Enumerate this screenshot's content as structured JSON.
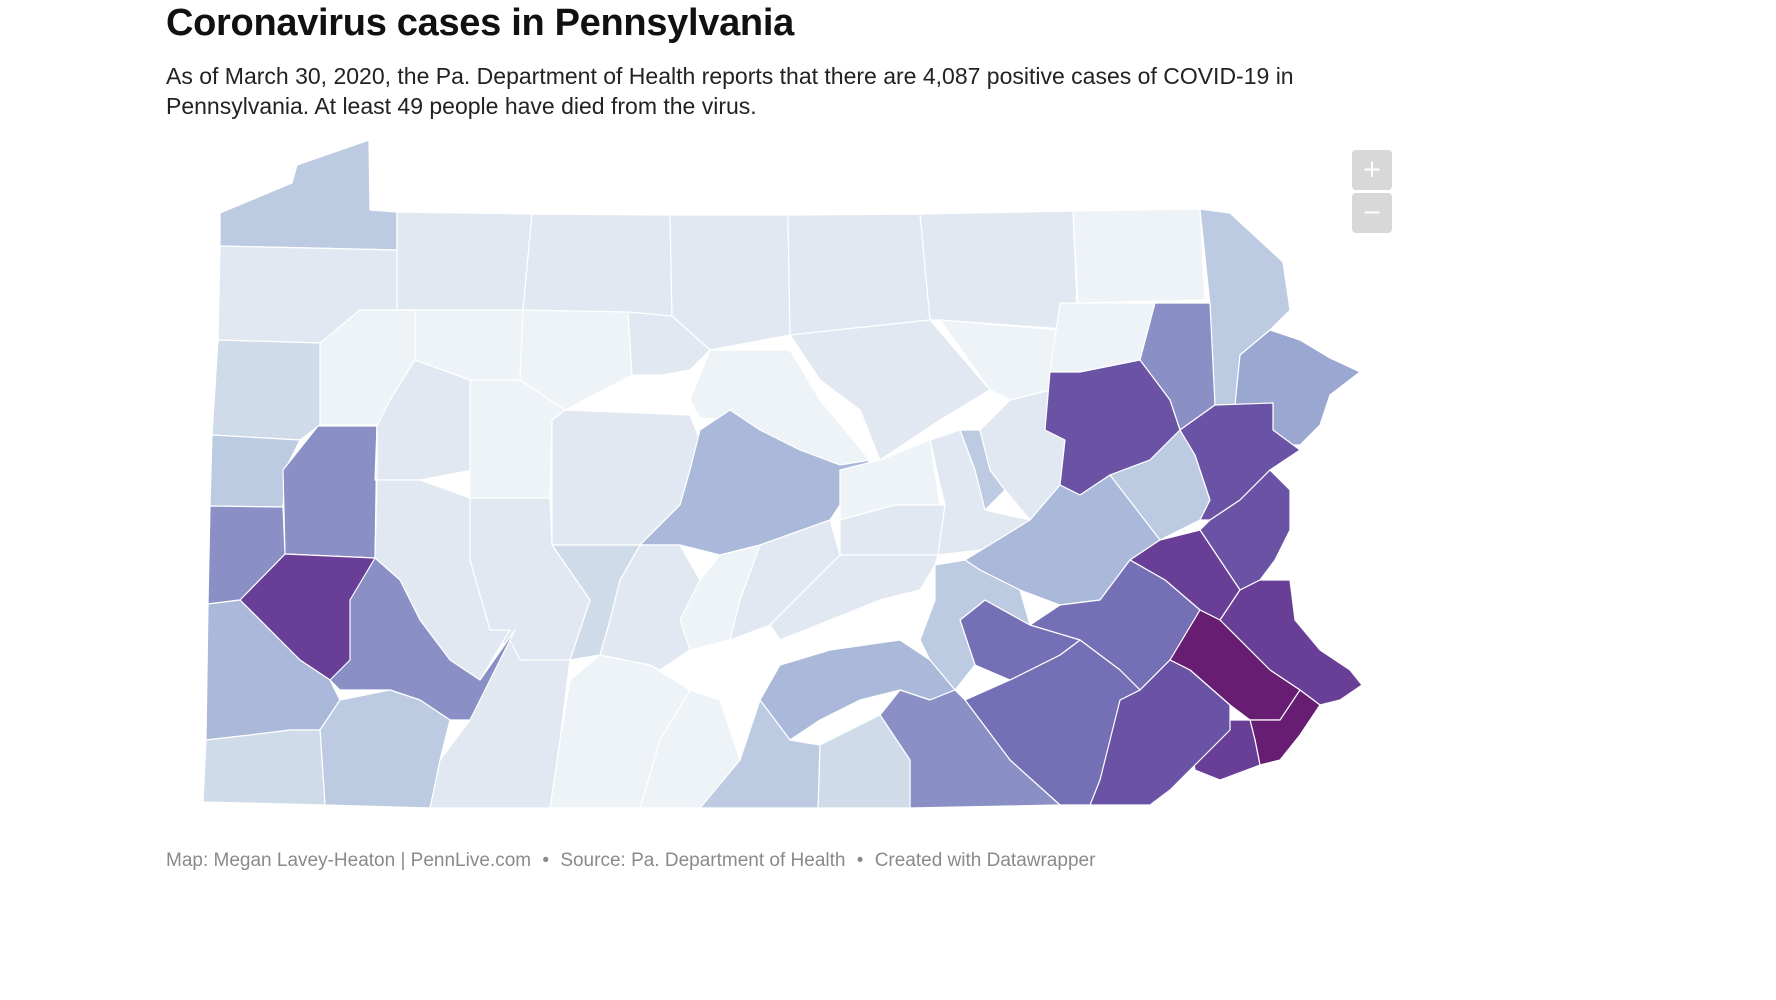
{
  "title": "Coronavirus cases in Pennsylvania",
  "description": "As of March 30, 2020, the Pa. Department of Health reports that there are 4,087 positive cases of COVID-19 in Pennsylvania. At least 49 people have died from the virus.",
  "zoom": {
    "in_label": "+",
    "out_label": "−"
  },
  "footer": {
    "map_credit": "Map: Megan Lavey-Heaton | PennLive.com",
    "separator": "•",
    "source": "Source: Pa. Department of Health",
    "tool": "Created with Datawrapper"
  },
  "colors": {
    "c0": "#eef3f7",
    "c1": "#e1e8f1",
    "c2": "#cfdbe8",
    "c3": "#bccbe2",
    "c4": "#aab9d9",
    "c5": "#9aa7d0",
    "c6": "#8a90c6",
    "c7": "#756fb6",
    "c8": "#6a52a5",
    "c9": "#683e96",
    "c10": "#661d72"
  }
}
